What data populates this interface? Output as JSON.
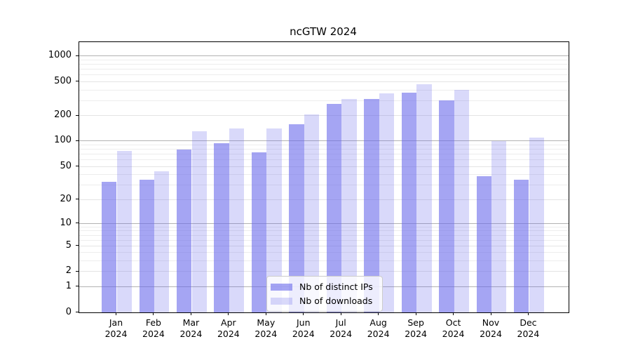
{
  "title": "ncGTW 2024",
  "legend": {
    "items": [
      {
        "label": "Nb of distinct IPs",
        "series": "distinct_ips"
      },
      {
        "label": "Nb of downloads",
        "series": "downloads"
      }
    ]
  },
  "colors": {
    "bar_distinct_ips": "rgba(105,105,235,0.60)",
    "bar_downloads": "rgba(105,105,235,0.25)",
    "grid_major": "#b2b2b2",
    "grid_mid": "#e4e4e4",
    "grid_minor": "#ededed",
    "axis_spine": "#000000",
    "legend_background": "rgba(255,255,255,0.8)",
    "legend_border": "#cccccc"
  },
  "chart_data": {
    "type": "bar",
    "title": "ncGTW 2024",
    "categories": [
      "Jan 2024",
      "Feb 2024",
      "Mar 2024",
      "Apr 2024",
      "May 2024",
      "Jun 2024",
      "Jul 2024",
      "Aug 2024",
      "Sep 2024",
      "Oct 2024",
      "Nov 2024",
      "Dec 2024"
    ],
    "x_tick_months": [
      "Jan",
      "Feb",
      "Mar",
      "Apr",
      "May",
      "Jun",
      "Jul",
      "Aug",
      "Sep",
      "Oct",
      "Nov",
      "Dec"
    ],
    "x_tick_year": "2024",
    "series": [
      {
        "name": "Nb of distinct IPs",
        "values": [
          33,
          35,
          80,
          94,
          73,
          158,
          275,
          315,
          372,
          300,
          38,
          35
        ]
      },
      {
        "name": "Nb of downloads",
        "values": [
          76,
          44,
          130,
          140,
          142,
          205,
          315,
          363,
          468,
          398,
          100,
          110
        ]
      }
    ],
    "y_scale": "log1p",
    "y_ticks": [
      0,
      1,
      2,
      5,
      10,
      20,
      50,
      100,
      200,
      500,
      1000
    ],
    "y_major_gridlines": [
      1,
      10,
      100,
      1000
    ],
    "y_mid_gridlines": [
      2,
      5,
      20,
      50,
      200,
      500
    ],
    "y_minor_gridlines": [
      3,
      4,
      6,
      7,
      8,
      9,
      30,
      40,
      60,
      70,
      80,
      90,
      300,
      400,
      600,
      700,
      800,
      900
    ],
    "xlabel": "",
    "ylabel": "",
    "grid": true,
    "legend_position": "lower center"
  }
}
